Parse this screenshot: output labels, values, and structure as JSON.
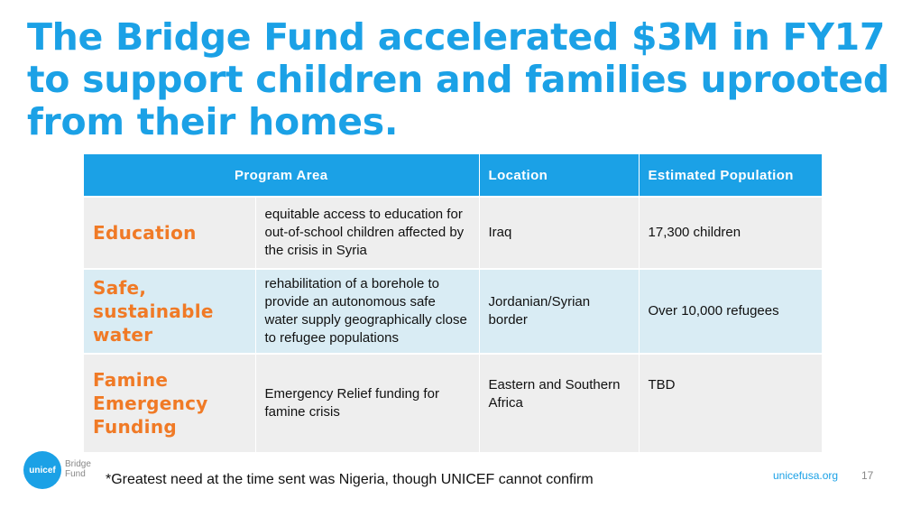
{
  "title": "The Bridge Fund accelerated $3M in FY17 to support children and families uprooted from their homes.",
  "table": {
    "headers": {
      "program_area": "Program Area",
      "location": "Location",
      "population": "Estimated Population"
    },
    "rows": [
      {
        "area": "Education",
        "description": "equitable access to education for out-of-school children affected by the crisis in Syria",
        "location": "Iraq",
        "population": "17,300 children"
      },
      {
        "area": "Safe, sustainable water",
        "description": "rehabilitation of a borehole to provide an autonomous safe water supply geographically close to refugee populations",
        "location": "Jordanian/Syrian border",
        "population": "Over 10,000 refugees"
      },
      {
        "area": "Famine Emergency Funding",
        "description": "Emergency Relief funding for famine crisis",
        "location": "Eastern and Southern Africa",
        "population": "TBD"
      }
    ]
  },
  "logo": {
    "mark": "unicef",
    "line1": "Bridge",
    "line2": "Fund"
  },
  "footnote": "*Greatest need at the time sent was Nigeria, though UNICEF cannot confirm",
  "footer": {
    "site": "unicefusa.org",
    "page": "17"
  },
  "colors": {
    "accent": "#1ba1e6",
    "area_text": "#f07a26",
    "row_gray": "#eeeeee",
    "row_blue": "#d9ecf4"
  }
}
